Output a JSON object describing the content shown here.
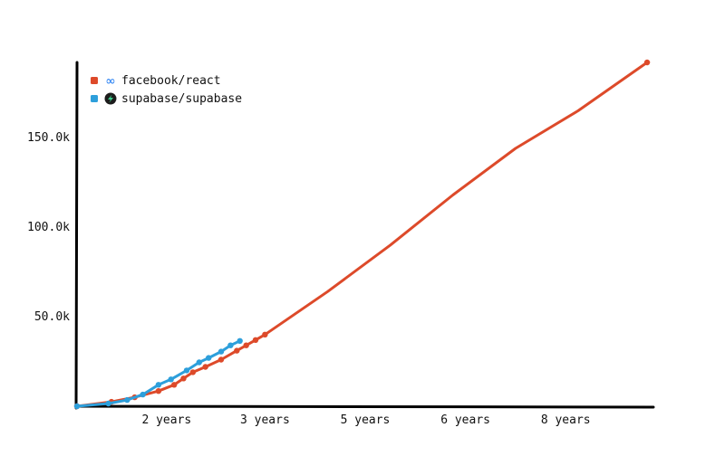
{
  "chart_data": {
    "type": "line",
    "title": "",
    "xlabel": "",
    "ylabel": "",
    "xlim": [
      0,
      9.2
    ],
    "ylim": [
      0,
      192000
    ],
    "x_ticks": [
      {
        "value": 1.43,
        "label": "2 years"
      },
      {
        "value": 3.0,
        "label": "3 years"
      },
      {
        "value": 4.6,
        "label": "5 years"
      },
      {
        "value": 6.2,
        "label": "6 years"
      },
      {
        "value": 7.8,
        "label": "8 years"
      }
    ],
    "y_ticks": [
      {
        "value": 50000,
        "label": "50.0k"
      },
      {
        "value": 100000,
        "label": "100.0k"
      },
      {
        "value": 150000,
        "label": "150.0k"
      }
    ],
    "legend_position": "top-left",
    "series": [
      {
        "name": "facebook/react",
        "color": "#dd4a2a",
        "icon": "meta-infinity-icon",
        "x": [
          0,
          0.55,
          0.92,
          1.3,
          1.55,
          1.7,
          1.85,
          2.05,
          2.3,
          2.55,
          2.7,
          2.85,
          3.0,
          4.0,
          5.0,
          6.0,
          7.0,
          8.0,
          9.1
        ],
        "y": [
          0,
          2500,
          5000,
          8500,
          12000,
          15500,
          19000,
          22000,
          26000,
          31000,
          34000,
          37000,
          40000,
          64000,
          90000,
          118000,
          144000,
          165000,
          192000
        ],
        "marker_x": [
          0,
          0.55,
          0.92,
          1.3,
          1.55,
          1.7,
          1.85,
          2.05,
          2.3,
          2.55,
          2.7,
          2.85,
          3.0,
          9.1
        ],
        "marker_y": [
          0,
          2500,
          5000,
          8500,
          12000,
          15500,
          19000,
          22000,
          26000,
          31000,
          34000,
          37000,
          40000,
          192000
        ]
      },
      {
        "name": "supabase/supabase",
        "color": "#2d9fdb",
        "icon": "supabase-bolt-icon",
        "x": [
          0,
          0.5,
          0.8,
          1.05,
          1.3,
          1.5,
          1.75,
          1.95,
          2.1,
          2.3,
          2.45,
          2.6
        ],
        "y": [
          0,
          1500,
          3500,
          6500,
          12000,
          15000,
          20000,
          24500,
          27000,
          30500,
          34000,
          36500
        ],
        "marker_x": [
          0,
          0.5,
          0.8,
          1.05,
          1.3,
          1.5,
          1.75,
          1.95,
          2.1,
          2.3,
          2.45,
          2.6
        ],
        "marker_y": [
          0,
          1500,
          3500,
          6500,
          12000,
          15000,
          20000,
          24500,
          27000,
          30500,
          34000,
          36500
        ]
      }
    ]
  }
}
